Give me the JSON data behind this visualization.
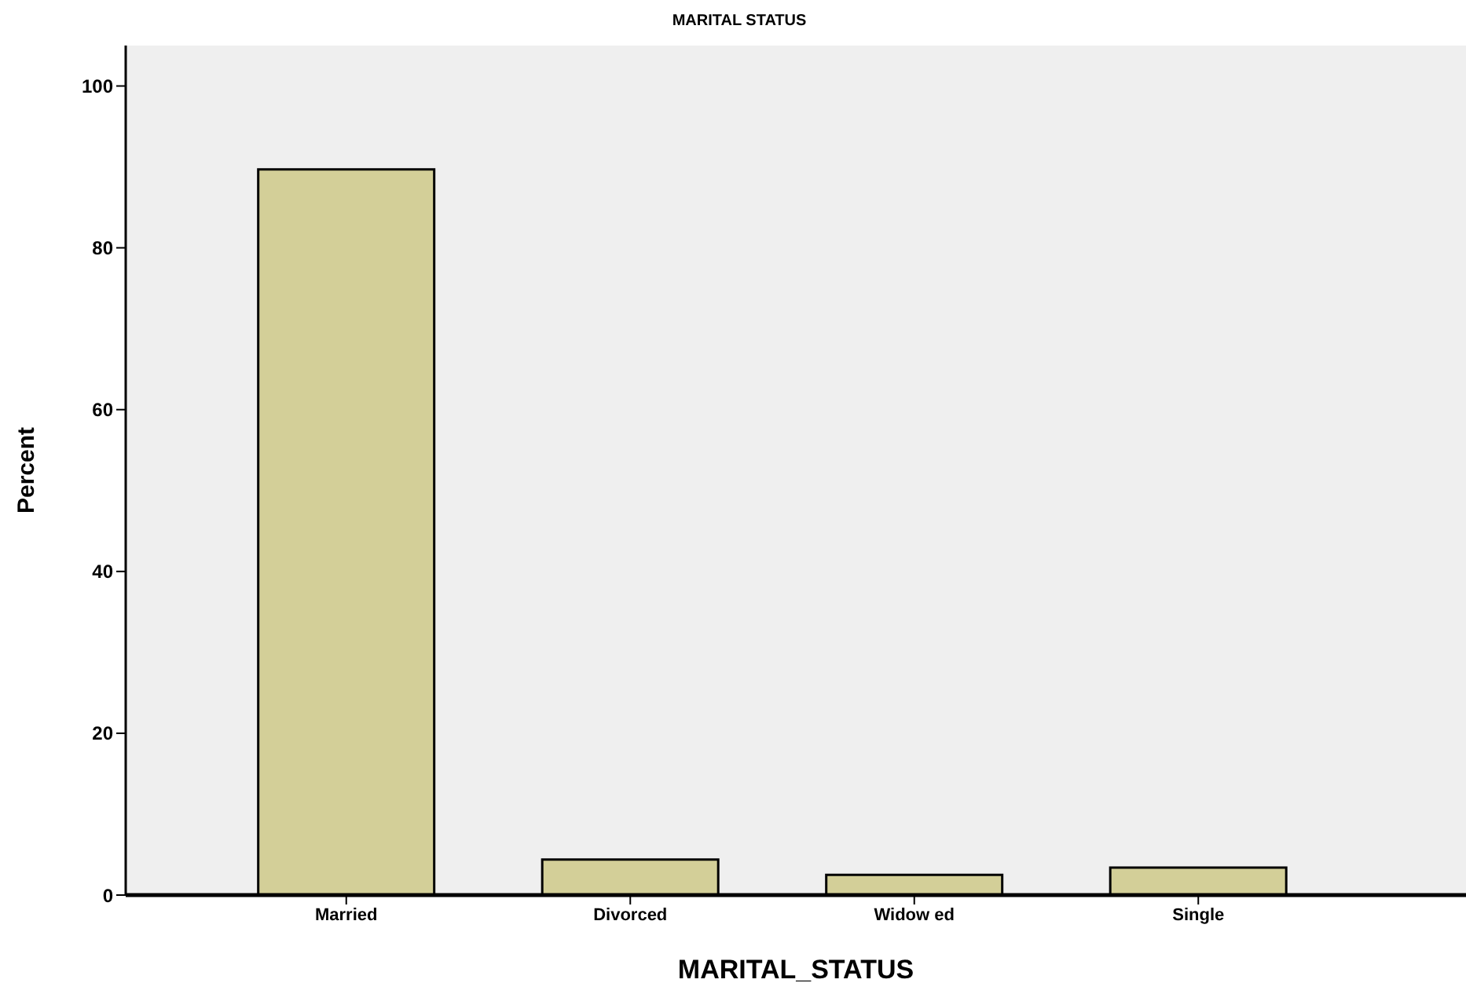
{
  "chart_data": {
    "type": "bar",
    "title": "MARITAL STATUS",
    "xlabel": "MARITAL_STATUS",
    "ylabel": "Percent",
    "categories": [
      "Married",
      "Divorced",
      "Widow ed",
      "Single"
    ],
    "values": [
      89.7,
      4.4,
      2.5,
      3.4
    ],
    "color": "#d3cf98",
    "ylim": [
      0,
      105
    ],
    "yticks": [
      0,
      20,
      40,
      60,
      80,
      100
    ],
    "grid": false
  }
}
